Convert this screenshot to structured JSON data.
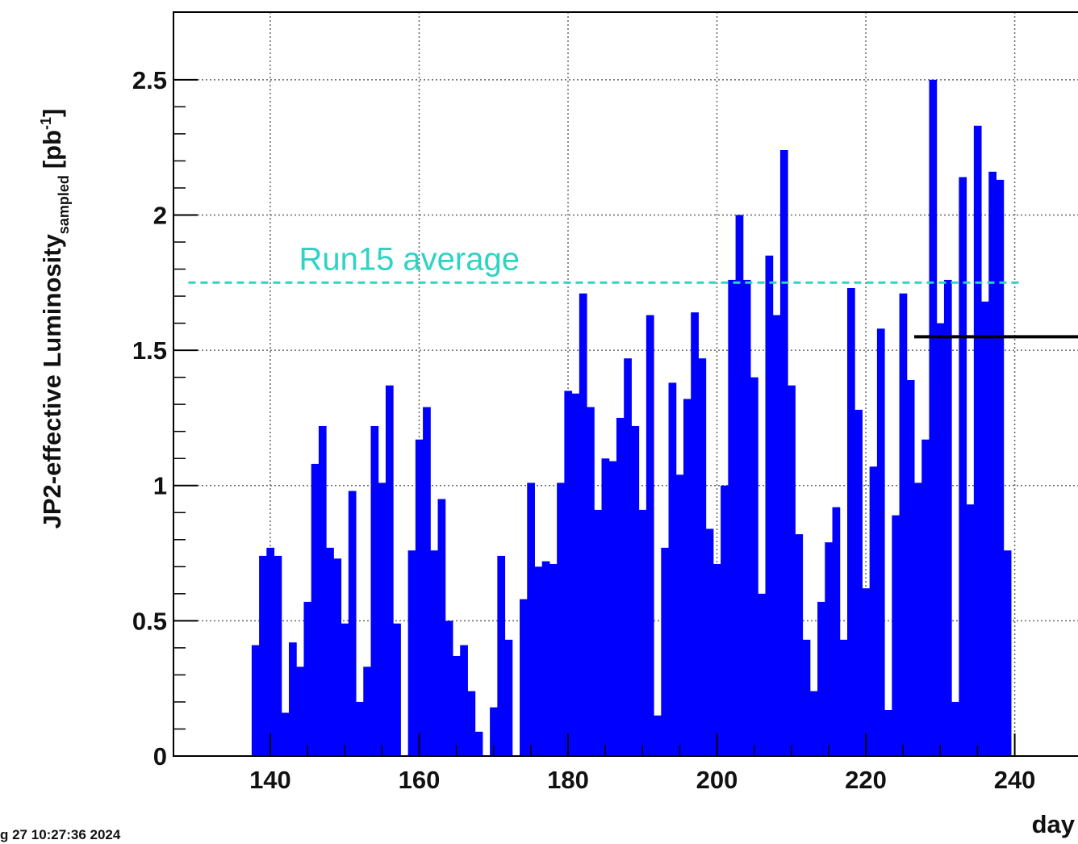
{
  "chart_data": {
    "type": "histogram",
    "ylabel": {
      "main": "JP2-effective Luminosity",
      "sub": "sampled",
      "unit": "[pb",
      "sup": "-1",
      "close": "]"
    },
    "xlabel": "day",
    "footer": "g 27 10:27:36 2024",
    "color": "#0000ff",
    "bins": [
      137.5,
      138.5,
      139.5,
      140.5,
      141.5,
      142.5,
      143.5,
      144.5,
      145.5,
      146.5,
      147.5,
      148.5,
      149.5,
      150.5,
      151.5,
      152.5,
      153.5,
      154.5,
      155.5,
      156.5,
      157.5,
      158.5,
      159.5,
      160.5,
      161.5,
      162.5,
      163.5,
      164.5,
      165.5,
      166.5,
      167.5,
      168.5,
      169.5,
      170.5,
      171.5,
      172.5,
      173.5,
      174.5,
      175.5,
      176.5,
      177.5,
      178.5,
      179.5,
      180.5,
      181.5,
      182.5,
      183.5,
      184.5,
      185.5,
      186.5,
      187.5,
      188.5,
      189.5,
      190.5,
      191.5,
      192.5,
      193.5,
      194.5,
      195.5,
      196.5,
      197.5,
      198.5,
      199.5,
      200.5,
      201.5,
      202.5,
      203.5,
      204.5,
      205.5,
      206.5,
      207.5,
      208.5,
      209.5,
      210.5,
      211.5,
      212.5,
      213.5,
      214.5,
      215.5,
      216.5,
      217.5,
      218.5,
      219.5,
      220.5,
      221.5,
      222.5,
      223.5,
      224.5,
      225.5,
      226.5,
      227.5,
      228.5,
      229.5,
      230.5,
      231.5,
      232.5,
      233.5,
      234.5,
      235.5,
      236.5,
      237.5,
      238.5,
      239.5
    ],
    "values": [
      0.41,
      0.74,
      0.77,
      0.74,
      0.16,
      0.42,
      0.33,
      0.57,
      1.08,
      1.22,
      0.77,
      0.73,
      0.49,
      0.98,
      0.2,
      0.33,
      1.22,
      1.01,
      1.37,
      0.49,
      0,
      0.76,
      1.17,
      1.29,
      0.76,
      0.95,
      0.5,
      0.37,
      0.41,
      0.24,
      0.09,
      0,
      0.18,
      0.74,
      0.43,
      0,
      0.58,
      1.01,
      0.7,
      0.72,
      0.71,
      1.01,
      1.35,
      1.34,
      1.71,
      1.29,
      0.91,
      1.1,
      1.09,
      1.25,
      1.47,
      1.22,
      0.91,
      1.63,
      0.15,
      0.77,
      1.38,
      1.04,
      1.32,
      1.64,
      1.47,
      0.84,
      0.71,
      1.0,
      1.76,
      2.0,
      1.76,
      1.4,
      0.6,
      1.85,
      1.63,
      2.24,
      1.37,
      0.82,
      0.43,
      0.24,
      0.57,
      0.79,
      0.92,
      0.43,
      1.73,
      1.28,
      0.62,
      1.07,
      1.58,
      0.17,
      0.89,
      1.71,
      1.39,
      1.01,
      1.17,
      2.5,
      1.6,
      1.76,
      0.2,
      2.14,
      0.93,
      2.33,
      1.68,
      2.16,
      2.13,
      0.76
    ],
    "xlim": [
      127,
      248.5
    ],
    "xticks": [
      140,
      160,
      180,
      200,
      220,
      240
    ],
    "ylim": [
      0,
      2.75
    ],
    "yticks": [
      0,
      0.5,
      1,
      1.5,
      2,
      2.5
    ],
    "grid": true,
    "reference_lines": [
      {
        "label": "Run15 average",
        "y": 1.75,
        "x": [
          129,
          241
        ],
        "color": "#2ed3c4",
        "dashed": true
      },
      {
        "y": 1.55,
        "x": [
          226.5,
          248.5
        ],
        "color": "#000000",
        "dashed": false
      }
    ]
  }
}
